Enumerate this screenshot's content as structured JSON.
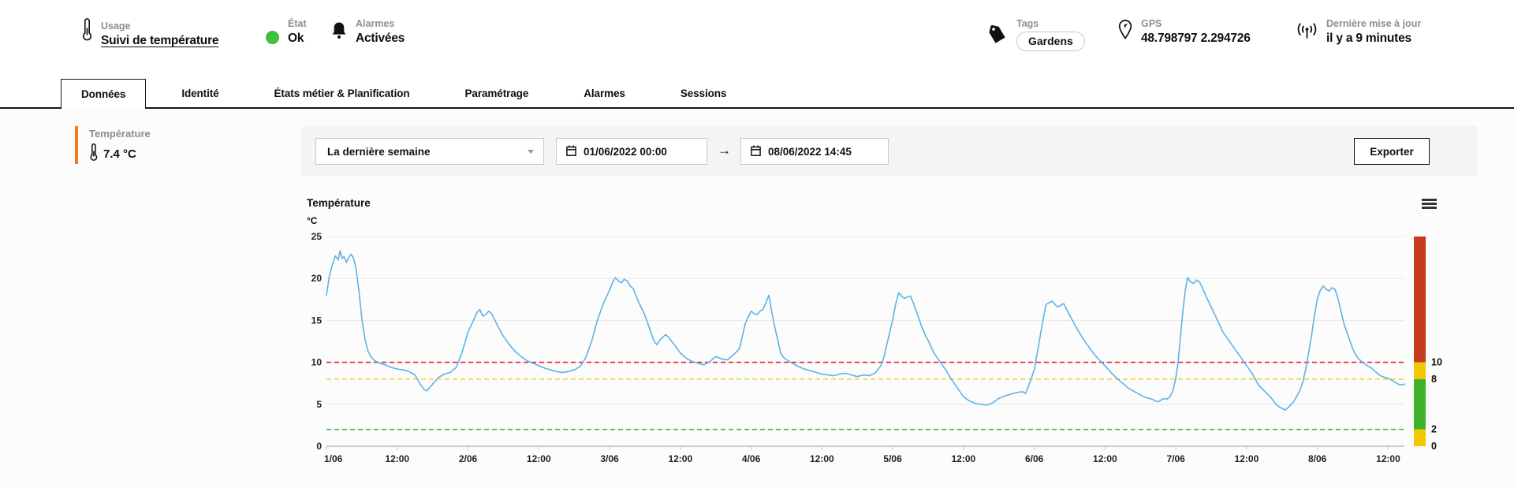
{
  "header": {
    "usage": {
      "label": "Usage",
      "value": "Suivi de température"
    },
    "etat": {
      "label": "État",
      "value": "Ok",
      "status_color": "#3ec13e"
    },
    "alarmes": {
      "label": "Alarmes",
      "value": "Activées"
    },
    "tags": {
      "label": "Tags",
      "value": "Gardens"
    },
    "gps": {
      "label": "GPS",
      "value": "48.798797 2.294726"
    },
    "update": {
      "label": "Dernière mise à jour",
      "value": "il y a 9 minutes"
    }
  },
  "tabs": [
    {
      "label": "Données",
      "active": true
    },
    {
      "label": "Identité",
      "active": false
    },
    {
      "label": "États métier & Planification",
      "active": false
    },
    {
      "label": "Paramétrage",
      "active": false
    },
    {
      "label": "Alarmes",
      "active": false
    },
    {
      "label": "Sessions",
      "active": false
    }
  ],
  "sidebar": {
    "metric_label": "Température",
    "metric_value": "7.4 °C",
    "accent_color": "#f57b1d"
  },
  "toolbar": {
    "range_select": "La dernière semaine",
    "date_from": "01/06/2022 00:00",
    "arrow": "→",
    "date_to": "08/06/2022 14:45",
    "export_label": "Exporter"
  },
  "chart_data": {
    "type": "line",
    "title": "Température",
    "ylabel": "°C",
    "ylim": [
      0,
      25
    ],
    "yticks": [
      0,
      5,
      10,
      15,
      20,
      25
    ],
    "x_unit": "hours since 01/06/2022 00:00",
    "xlim": [
      0,
      182.75
    ],
    "xtick_hours": [
      0,
      12,
      24,
      36,
      48,
      60,
      72,
      84,
      96,
      108,
      120,
      132,
      144,
      156,
      168,
      180
    ],
    "xtick_labels": [
      "1/06",
      "12:00",
      "2/06",
      "12:00",
      "3/06",
      "12:00",
      "4/06",
      "12:00",
      "5/06",
      "12:00",
      "6/06",
      "12:00",
      "7/06",
      "12:00",
      "8/06",
      "12:00"
    ],
    "grid": "horizontal-only",
    "legend": "none",
    "threshold_lines": [
      {
        "value": 10,
        "color": "#df2b1e",
        "style": "dashed"
      },
      {
        "value": 8,
        "color": "#f2cd3f",
        "style": "dashed"
      },
      {
        "value": 2,
        "color": "#44b24a",
        "style": "dashed"
      }
    ],
    "right_color_bar": [
      {
        "from": 10,
        "to": 25,
        "color": "#c63c1c"
      },
      {
        "from": 8,
        "to": 10,
        "color": "#f6c700"
      },
      {
        "from": 2,
        "to": 8,
        "color": "#3fb32a"
      },
      {
        "from": 0,
        "to": 2,
        "color": "#f6c700"
      }
    ],
    "right_axis_labels": [
      10,
      8,
      2,
      0
    ],
    "series": [
      {
        "name": "Température",
        "color": "#5db3e6",
        "points": [
          [
            0,
            18
          ],
          [
            0.5,
            20.3
          ],
          [
            1,
            21.6
          ],
          [
            1.5,
            22.7
          ],
          [
            2,
            22.2
          ],
          [
            2.3,
            23.3
          ],
          [
            2.7,
            22.4
          ],
          [
            3,
            22.6
          ],
          [
            3.4,
            21.9
          ],
          [
            3.8,
            22.5
          ],
          [
            4.2,
            22.9
          ],
          [
            4.6,
            22.4
          ],
          [
            5,
            21.2
          ],
          [
            5.5,
            18.6
          ],
          [
            6,
            15.2
          ],
          [
            6.5,
            12.9
          ],
          [
            7,
            11.4
          ],
          [
            7.5,
            10.7
          ],
          [
            8,
            10.3
          ],
          [
            9,
            9.9
          ],
          [
            10,
            9.7
          ],
          [
            11,
            9.4
          ],
          [
            12,
            9.2
          ],
          [
            13,
            9.1
          ],
          [
            14,
            8.9
          ],
          [
            15,
            8.5
          ],
          [
            15.5,
            7.9
          ],
          [
            16,
            7.3
          ],
          [
            16.5,
            6.8
          ],
          [
            17,
            6.6
          ],
          [
            17.5,
            7
          ],
          [
            18,
            7.4
          ],
          [
            19,
            8.2
          ],
          [
            20,
            8.6
          ],
          [
            21,
            8.8
          ],
          [
            22,
            9.4
          ],
          [
            23,
            11.2
          ],
          [
            24,
            13.6
          ],
          [
            25,
            15.1
          ],
          [
            25.5,
            15.9
          ],
          [
            26,
            16.3
          ],
          [
            26.5,
            15.5
          ],
          [
            27,
            15.7
          ],
          [
            27.5,
            16.1
          ],
          [
            28,
            15.8
          ],
          [
            28.5,
            15.1
          ],
          [
            29,
            14.4
          ],
          [
            30,
            13.1
          ],
          [
            31,
            12.1
          ],
          [
            32,
            11.3
          ],
          [
            33,
            10.7
          ],
          [
            34,
            10.2
          ],
          [
            35,
            9.9
          ],
          [
            36,
            9.6
          ],
          [
            37,
            9.3
          ],
          [
            38,
            9.1
          ],
          [
            39,
            8.9
          ],
          [
            40,
            8.8
          ],
          [
            41,
            8.9
          ],
          [
            42,
            9.1
          ],
          [
            43,
            9.5
          ],
          [
            44,
            10.6
          ],
          [
            45,
            12.6
          ],
          [
            46,
            15.2
          ],
          [
            47,
            17.1
          ],
          [
            48,
            18.6
          ],
          [
            48.5,
            19.5
          ],
          [
            49,
            20.1
          ],
          [
            49.5,
            19.7
          ],
          [
            50,
            19.5
          ],
          [
            50.5,
            19.9
          ],
          [
            51,
            19.7
          ],
          [
            51.5,
            19.1
          ],
          [
            52,
            18.8
          ],
          [
            52.5,
            17.9
          ],
          [
            53,
            17.1
          ],
          [
            54,
            15.6
          ],
          [
            55,
            13.6
          ],
          [
            55.5,
            12.6
          ],
          [
            56,
            12.1
          ],
          [
            56.5,
            12.6
          ],
          [
            57,
            13
          ],
          [
            57.5,
            13.3
          ],
          [
            58,
            13
          ],
          [
            58.5,
            12.5
          ],
          [
            59,
            12.1
          ],
          [
            60,
            11.1
          ],
          [
            61,
            10.5
          ],
          [
            62,
            10.1
          ],
          [
            63,
            9.9
          ],
          [
            64,
            9.7
          ],
          [
            65,
            10.1
          ],
          [
            66,
            10.7
          ],
          [
            67,
            10.4
          ],
          [
            68,
            10.3
          ],
          [
            69,
            10.9
          ],
          [
            70,
            11.6
          ],
          [
            70.5,
            13.1
          ],
          [
            71,
            14.6
          ],
          [
            71.5,
            15.4
          ],
          [
            72,
            16.1
          ],
          [
            72.5,
            15.8
          ],
          [
            73,
            15.7
          ],
          [
            73.5,
            16.1
          ],
          [
            74,
            16.3
          ],
          [
            74.5,
            17.1
          ],
          [
            75,
            18
          ],
          [
            75.4,
            16.4
          ],
          [
            75.8,
            14.9
          ],
          [
            76.2,
            13.6
          ],
          [
            76.6,
            12.4
          ],
          [
            77,
            11.1
          ],
          [
            77.5,
            10.6
          ],
          [
            78,
            10.3
          ],
          [
            79,
            9.9
          ],
          [
            80,
            9.5
          ],
          [
            81,
            9.2
          ],
          [
            82,
            9
          ],
          [
            83,
            8.8
          ],
          [
            84,
            8.6
          ],
          [
            85,
            8.5
          ],
          [
            86,
            8.4
          ],
          [
            87,
            8.6
          ],
          [
            88,
            8.7
          ],
          [
            89,
            8.5
          ],
          [
            90,
            8.3
          ],
          [
            91,
            8.5
          ],
          [
            92,
            8.4
          ],
          [
            93,
            8.7
          ],
          [
            94,
            9.6
          ],
          [
            94.5,
            10.6
          ],
          [
            95,
            12.1
          ],
          [
            95.5,
            13.6
          ],
          [
            96,
            15.1
          ],
          [
            96.5,
            16.9
          ],
          [
            97,
            18.3
          ],
          [
            97.5,
            17.9
          ],
          [
            98,
            17.6
          ],
          [
            98.5,
            17.8
          ],
          [
            99,
            17.9
          ],
          [
            99.5,
            17.1
          ],
          [
            100,
            16.1
          ],
          [
            100.5,
            15.1
          ],
          [
            101,
            14.1
          ],
          [
            101.5,
            13.3
          ],
          [
            102,
            12.6
          ],
          [
            103,
            11.1
          ],
          [
            104,
            10.1
          ],
          [
            105,
            9.1
          ],
          [
            106,
            7.9
          ],
          [
            107,
            6.9
          ],
          [
            108,
            5.9
          ],
          [
            109,
            5.4
          ],
          [
            110,
            5.1
          ],
          [
            111,
            5
          ],
          [
            112,
            4.9
          ],
          [
            113,
            5.2
          ],
          [
            114,
            5.7
          ],
          [
            115,
            6
          ],
          [
            116,
            6.2
          ],
          [
            117,
            6.4
          ],
          [
            118,
            6.5
          ],
          [
            118.5,
            6.3
          ],
          [
            119,
            7.1
          ],
          [
            119.5,
            8.1
          ],
          [
            120,
            9.1
          ],
          [
            120.5,
            11.1
          ],
          [
            121,
            13.1
          ],
          [
            121.5,
            15.1
          ],
          [
            122,
            16.9
          ],
          [
            122.5,
            17.1
          ],
          [
            123,
            17.3
          ],
          [
            123.5,
            16.9
          ],
          [
            124,
            16.6
          ],
          [
            124.5,
            16.8
          ],
          [
            125,
            17
          ],
          [
            125.5,
            16.3
          ],
          [
            126,
            15.6
          ],
          [
            127,
            14.3
          ],
          [
            128,
            13.1
          ],
          [
            129,
            12.1
          ],
          [
            130,
            11.1
          ],
          [
            131,
            10.3
          ],
          [
            132,
            9.6
          ],
          [
            133,
            8.8
          ],
          [
            134,
            8.1
          ],
          [
            135,
            7.5
          ],
          [
            136,
            6.9
          ],
          [
            137,
            6.5
          ],
          [
            138,
            6.1
          ],
          [
            139,
            5.8
          ],
          [
            140,
            5.6
          ],
          [
            140.5,
            5.4
          ],
          [
            141,
            5.3
          ],
          [
            141.5,
            5.5
          ],
          [
            142,
            5.7
          ],
          [
            142.5,
            5.6
          ],
          [
            143,
            5.9
          ],
          [
            143.5,
            6.6
          ],
          [
            144,
            8.1
          ],
          [
            144.4,
            10.1
          ],
          [
            144.8,
            13.1
          ],
          [
            145.2,
            16.1
          ],
          [
            145.6,
            18.6
          ],
          [
            146,
            20.1
          ],
          [
            146.5,
            19.6
          ],
          [
            147,
            19.4
          ],
          [
            147.5,
            19.8
          ],
          [
            148,
            19.6
          ],
          [
            148.5,
            18.9
          ],
          [
            149,
            18.1
          ],
          [
            149.5,
            17.3
          ],
          [
            150,
            16.6
          ],
          [
            151,
            15.1
          ],
          [
            152,
            13.6
          ],
          [
            153,
            12.6
          ],
          [
            154,
            11.6
          ],
          [
            155,
            10.6
          ],
          [
            156,
            9.6
          ],
          [
            157,
            8.6
          ],
          [
            158,
            7.3
          ],
          [
            159,
            6.6
          ],
          [
            160,
            5.9
          ],
          [
            161,
            5
          ],
          [
            161.5,
            4.7
          ],
          [
            162,
            4.5
          ],
          [
            162.5,
            4.3
          ],
          [
            163,
            4.6
          ],
          [
            164,
            5.3
          ],
          [
            165,
            6.6
          ],
          [
            165.5,
            7.6
          ],
          [
            166,
            9.1
          ],
          [
            166.5,
            11.1
          ],
          [
            167,
            13.1
          ],
          [
            167.5,
            15.6
          ],
          [
            168,
            17.6
          ],
          [
            168.5,
            18.6
          ],
          [
            169,
            19.1
          ],
          [
            169.5,
            18.7
          ],
          [
            170,
            18.5
          ],
          [
            170.5,
            18.9
          ],
          [
            171,
            18.7
          ],
          [
            171.5,
            17.6
          ],
          [
            172,
            16.1
          ],
          [
            172.5,
            14.6
          ],
          [
            173,
            13.6
          ],
          [
            173.5,
            12.6
          ],
          [
            174,
            11.6
          ],
          [
            174.5,
            10.9
          ],
          [
            175,
            10.4
          ],
          [
            175.5,
            10.1
          ],
          [
            176,
            9.8
          ],
          [
            176.5,
            9.6
          ],
          [
            177,
            9.4
          ],
          [
            177.5,
            9.1
          ],
          [
            178,
            8.8
          ],
          [
            178.5,
            8.5
          ],
          [
            179,
            8.3
          ],
          [
            179.5,
            8.2
          ],
          [
            180,
            8.1
          ],
          [
            180.5,
            7.9
          ],
          [
            181,
            7.7
          ],
          [
            181.5,
            7.5
          ],
          [
            182,
            7.3
          ],
          [
            182.75,
            7.4
          ]
        ]
      }
    ]
  }
}
